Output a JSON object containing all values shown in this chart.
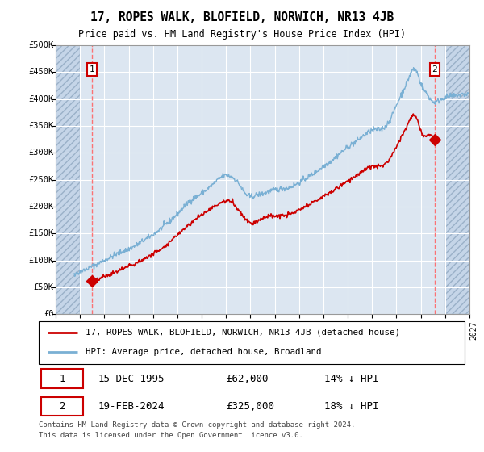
{
  "title": "17, ROPES WALK, BLOFIELD, NORWICH, NR13 4JB",
  "subtitle": "Price paid vs. HM Land Registry's House Price Index (HPI)",
  "ylim": [
    0,
    500000
  ],
  "yticks": [
    0,
    50000,
    100000,
    150000,
    200000,
    250000,
    300000,
    350000,
    400000,
    450000,
    500000
  ],
  "ytick_labels": [
    "£0",
    "£50K",
    "£100K",
    "£150K",
    "£200K",
    "£250K",
    "£300K",
    "£350K",
    "£400K",
    "£450K",
    "£500K"
  ],
  "xlim_start": 1993.0,
  "xlim_end": 2027.0,
  "xticks": [
    1993,
    1995,
    1997,
    1999,
    2001,
    2003,
    2005,
    2007,
    2009,
    2011,
    2013,
    2015,
    2017,
    2019,
    2021,
    2023,
    2025,
    2027
  ],
  "purchase1_x": 1995.96,
  "purchase1_y": 62000,
  "purchase2_x": 2024.13,
  "purchase2_y": 325000,
  "legend_line1": "17, ROPES WALK, BLOFIELD, NORWICH, NR13 4JB (detached house)",
  "legend_line2": "HPI: Average price, detached house, Broadland",
  "table_row1": [
    "1",
    "15-DEC-1995",
    "£62,000",
    "14% ↓ HPI"
  ],
  "table_row2": [
    "2",
    "19-FEB-2024",
    "£325,000",
    "18% ↓ HPI"
  ],
  "footer": "Contains HM Land Registry data © Crown copyright and database right 2024.\nThis data is licensed under the Open Government Licence v3.0.",
  "bg_main": "#dce6f1",
  "bg_side": "#c5d5e8",
  "grid_color": "#ffffff",
  "hpi_color": "#7ab0d4",
  "price_color": "#cc0000",
  "vline_color": "#ff6666",
  "hatch_left_end": 1995.0,
  "hatch_right_start": 2025.0,
  "hpi_knots_x": [
    1993,
    1994,
    1995,
    1996,
    1997,
    1998,
    1999,
    2000,
    2001,
    2002,
    2003,
    2004,
    2005,
    2006,
    2007,
    2007.5,
    2008,
    2008.5,
    2009,
    2009.5,
    2010,
    2011,
    2012,
    2013,
    2014,
    2015,
    2016,
    2017,
    2018,
    2019,
    2020,
    2020.5,
    2021,
    2021.5,
    2022,
    2022.3,
    2022.7,
    2023,
    2023.5,
    2024,
    2024.5,
    2025,
    2026,
    2027
  ],
  "hpi_knots_y": [
    68000,
    72000,
    78000,
    88000,
    98000,
    108000,
    118000,
    130000,
    145000,
    162000,
    182000,
    205000,
    220000,
    238000,
    252000,
    248000,
    238000,
    220000,
    212000,
    215000,
    218000,
    225000,
    228000,
    238000,
    252000,
    268000,
    285000,
    305000,
    320000,
    335000,
    340000,
    355000,
    380000,
    405000,
    430000,
    445000,
    440000,
    420000,
    400000,
    385000,
    388000,
    393000,
    398000,
    402000
  ],
  "price_knots_x": [
    1995.96,
    1996.5,
    1997,
    1998,
    1999,
    2000,
    2001,
    2002,
    2003,
    2004,
    2005,
    2006,
    2007,
    2007.5,
    2008,
    2008.5,
    2009,
    2009.5,
    2010,
    2011,
    2012,
    2013,
    2014,
    2015,
    2016,
    2017,
    2018,
    2019,
    2020,
    2020.5,
    2021,
    2021.5,
    2022,
    2022.3,
    2022.7,
    2023,
    2023.5,
    2024.13
  ],
  "price_knots_y": [
    62000,
    65000,
    70000,
    80000,
    90000,
    100000,
    113000,
    128000,
    148000,
    168000,
    185000,
    200000,
    210000,
    208000,
    195000,
    180000,
    170000,
    172000,
    178000,
    182000,
    183000,
    192000,
    205000,
    218000,
    232000,
    248000,
    262000,
    275000,
    278000,
    292000,
    312000,
    335000,
    355000,
    368000,
    362000,
    340000,
    332000,
    325000
  ]
}
